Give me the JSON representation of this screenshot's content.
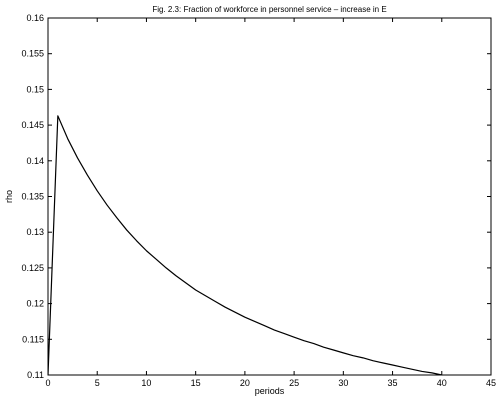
{
  "chart_data": {
    "type": "line",
    "title": "Fig. 2.3: Fraction of workforce in personnel service – increase in E",
    "xlabel": "periods",
    "ylabel": "rho",
    "xlim": [
      0,
      45
    ],
    "ylim": [
      0.11,
      0.16
    ],
    "xticks": [
      0,
      5,
      10,
      15,
      20,
      25,
      30,
      35,
      40,
      45
    ],
    "yticks": [
      0.11,
      0.115,
      0.12,
      0.125,
      0.13,
      0.135,
      0.14,
      0.145,
      0.15,
      0.155,
      0.16
    ],
    "xtick_labels": [
      "0",
      "5",
      "10",
      "15",
      "20",
      "25",
      "30",
      "35",
      "40",
      "45"
    ],
    "ytick_labels": [
      "0.11",
      "0.115",
      "0.12",
      "0.125",
      "0.13",
      "0.135",
      "0.14",
      "0.145",
      "0.15",
      "0.155",
      "0.16"
    ],
    "grid": false,
    "line_color": "#000000",
    "series": [
      {
        "x": [
          0,
          1,
          2,
          3,
          4,
          5,
          6,
          7,
          8,
          9,
          10,
          11,
          12,
          13,
          14,
          15,
          16,
          17,
          18,
          19,
          20,
          21,
          22,
          23,
          24,
          25,
          26,
          27,
          28,
          29,
          30,
          31,
          32,
          33,
          34,
          35,
          36,
          37,
          38,
          39,
          40,
          41
        ],
        "y": [
          0.11,
          0.1463,
          0.1431,
          0.1404,
          0.138,
          0.1358,
          0.1338,
          0.132,
          0.1303,
          0.1288,
          0.1274,
          0.1262,
          0.125,
          0.1239,
          0.1229,
          0.1219,
          0.1211,
          0.1203,
          0.1195,
          0.1188,
          0.1181,
          0.1175,
          0.1169,
          0.1163,
          0.1158,
          0.1153,
          0.1148,
          0.1144,
          0.1139,
          0.1135,
          0.1131,
          0.1127,
          0.1124,
          0.112,
          0.1117,
          0.1114,
          0.1111,
          0.1108,
          0.1105,
          0.1103,
          0.11,
          0.1098
        ]
      }
    ]
  }
}
